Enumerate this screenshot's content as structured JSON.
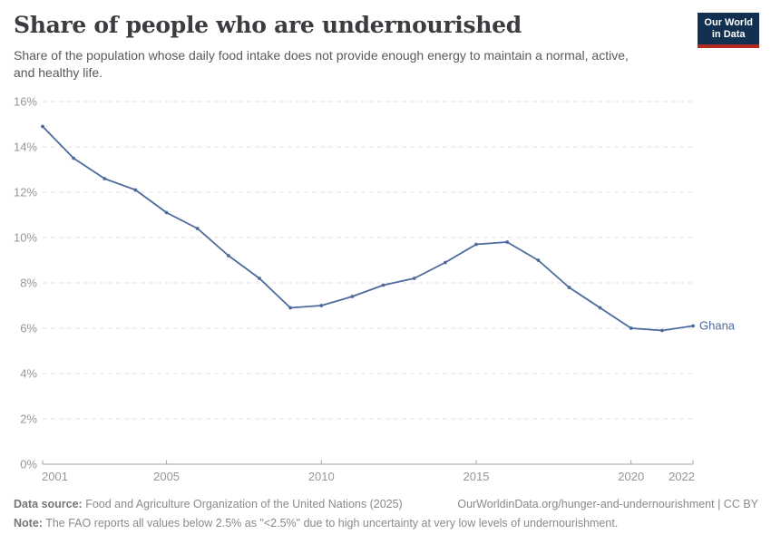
{
  "header": {
    "title": "Share of people who are undernourished",
    "subtitle_line1": "Share of the population whose daily food intake does not provide enough energy to maintain a normal, active,",
    "subtitle_line2": "and healthy life.",
    "logo": {
      "line1": "Our World",
      "line2": "in Data",
      "bg_color": "#12304F",
      "accent_color": "#B42B22"
    }
  },
  "chart_data": {
    "type": "line",
    "title": "Share of people who are undernourished",
    "subtitle": "Share of the population whose daily food intake does not provide enough energy to maintain a normal, active, and healthy life.",
    "x": [
      2001,
      2002,
      2003,
      2004,
      2005,
      2006,
      2007,
      2008,
      2009,
      2010,
      2011,
      2012,
      2013,
      2014,
      2015,
      2016,
      2017,
      2018,
      2019,
      2020,
      2021,
      2022
    ],
    "series": [
      {
        "name": "Ghana",
        "color": "#4C6A9C",
        "values": [
          14.9,
          13.5,
          12.6,
          12.1,
          11.1,
          10.4,
          9.2,
          8.2,
          6.9,
          7.0,
          7.4,
          7.9,
          8.2,
          8.9,
          9.7,
          9.8,
          9.0,
          7.8,
          6.9,
          6.0,
          5.9,
          6.1
        ]
      }
    ],
    "xlabel": "",
    "ylabel": "",
    "xlim": [
      2001,
      2022
    ],
    "ylim": [
      0,
      16
    ],
    "yticks": [
      0,
      2,
      4,
      6,
      8,
      10,
      12,
      14,
      16
    ],
    "ytick_suffix": "%",
    "xticks": [
      2001,
      2005,
      2010,
      2015,
      2020,
      2022
    ],
    "grid": "horizontal-dashed",
    "legend_position": "end-of-line-label",
    "colors": {
      "gridline": "#e2e2e2",
      "axis": "#a3a3a3",
      "tick_label": "#969696"
    }
  },
  "footer": {
    "datasource_label": "Data source:",
    "datasource_text": " Food and Agriculture Organization of the United Nations (2025)",
    "link_text": "OurWorldinData.org/hunger-and-undernourishment | CC BY",
    "note_label": "Note:",
    "note_text": " The FAO reports all values below 2.5% as \"<2.5%\" due to high uncertainty at very low levels of undernourishment."
  }
}
